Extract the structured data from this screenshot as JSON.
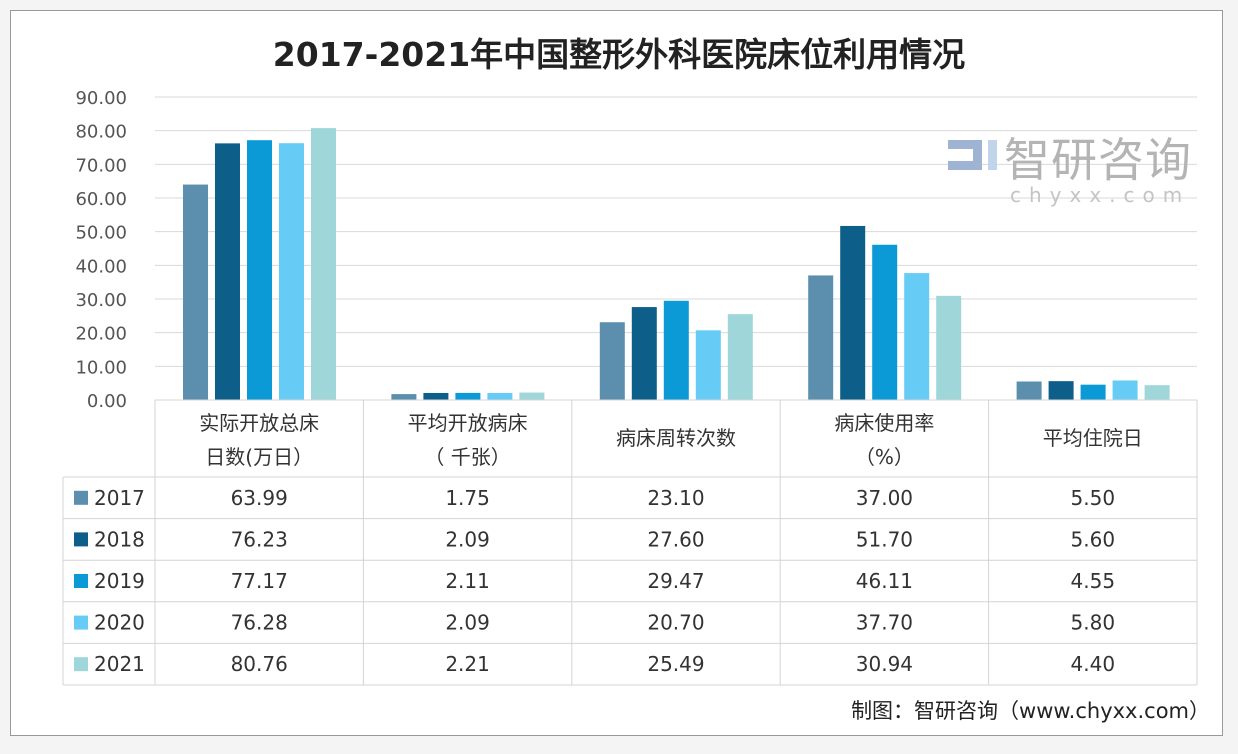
{
  "chart_data": {
    "type": "bar",
    "title": "2017-2021年中国整形外科医院床位利用情况",
    "categories": [
      [
        "实际开放总床",
        "日数(万日）"
      ],
      [
        "平均开放病床",
        "（ 千张）"
      ],
      [
        "病床周转次数"
      ],
      [
        "病床使用率",
        "（%）"
      ],
      [
        "平均住院日"
      ]
    ],
    "ylim": [
      0,
      90
    ],
    "yticks": [
      "0.00",
      "10.00",
      "20.00",
      "30.00",
      "40.00",
      "50.00",
      "60.00",
      "70.00",
      "80.00",
      "90.00"
    ],
    "grid": true,
    "legend": "data-table-left",
    "series": [
      {
        "name": "2017",
        "color": "#5B8FAD",
        "values": [
          63.99,
          1.75,
          23.1,
          37.0,
          5.5
        ],
        "labels": [
          "63.99",
          "1.75",
          "23.10",
          "37.00",
          "5.50"
        ]
      },
      {
        "name": "2018",
        "color": "#0E5E8A",
        "values": [
          76.23,
          2.09,
          27.6,
          51.7,
          5.6
        ],
        "labels": [
          "76.23",
          "2.09",
          "27.60",
          "51.70",
          "5.60"
        ]
      },
      {
        "name": "2019",
        "color": "#0B9AD6",
        "values": [
          77.17,
          2.11,
          29.47,
          46.11,
          4.55
        ],
        "labels": [
          "77.17",
          "2.11",
          "29.47",
          "46.11",
          "4.55"
        ]
      },
      {
        "name": "2020",
        "color": "#66CCF5",
        "values": [
          76.28,
          2.09,
          20.7,
          37.7,
          5.8
        ],
        "labels": [
          "76.28",
          "2.09",
          "20.70",
          "37.70",
          "5.80"
        ]
      },
      {
        "name": "2021",
        "color": "#9ED6DA",
        "values": [
          80.76,
          2.21,
          25.49,
          30.94,
          4.4
        ],
        "labels": [
          "80.76",
          "2.21",
          "25.49",
          "30.94",
          "4.40"
        ]
      }
    ]
  },
  "source": "制图：智研咨询（www.chyxx.com）",
  "watermark": {
    "text": "智研咨询",
    "sub": "chyxx.com"
  }
}
